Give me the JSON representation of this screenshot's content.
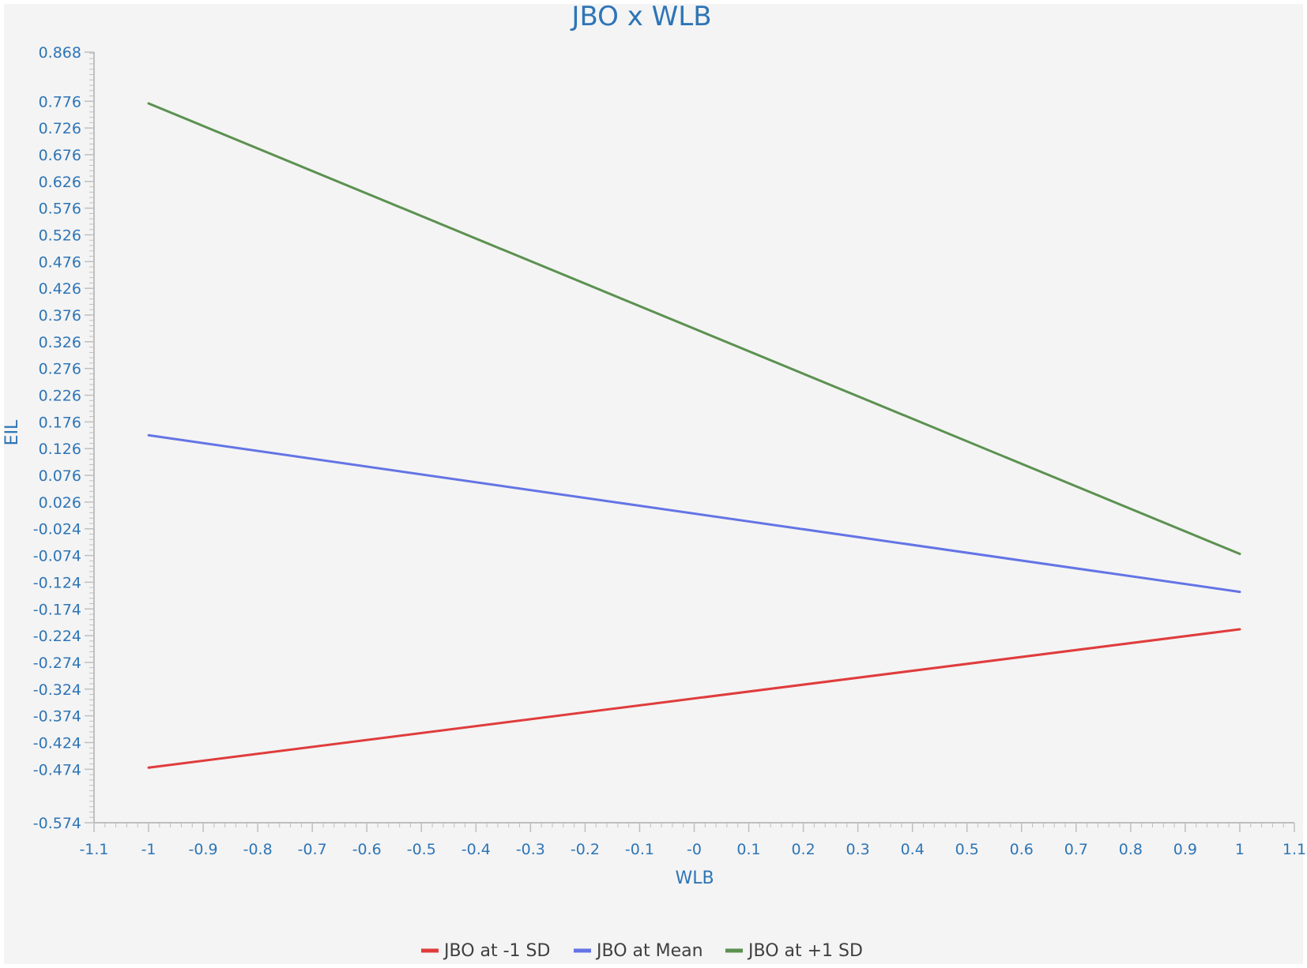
{
  "chart_data": {
    "type": "line",
    "title": "JBO x WLB",
    "xlabel": "WLB",
    "ylabel": "EIL",
    "xlim": [
      -1.1,
      1.1
    ],
    "ylim": [
      -0.574,
      0.868
    ],
    "x_ticks": [
      "-1.1",
      "-1",
      "-0.9",
      "-0.8",
      "-0.7",
      "-0.6",
      "-0.5",
      "-0.4",
      "-0.3",
      "-0.2",
      "-0.1",
      "-0",
      "0.1",
      "0.2",
      "0.3",
      "0.4",
      "0.5",
      "0.6",
      "0.7",
      "0.8",
      "0.9",
      "1",
      "1.1"
    ],
    "y_ticks": [
      "0.868",
      "0.776",
      "0.726",
      "0.676",
      "0.626",
      "0.576",
      "0.526",
      "0.476",
      "0.426",
      "0.376",
      "0.326",
      "0.276",
      "0.226",
      "0.176",
      "0.126",
      "0.076",
      "0.026",
      "-0.024",
      "-0.074",
      "-0.124",
      "-0.174",
      "-0.224",
      "-0.274",
      "-0.324",
      "-0.374",
      "-0.424",
      "-0.474",
      "-0.574"
    ],
    "grid": false,
    "legend_position": "bottom",
    "series": [
      {
        "name": "JBO at -1 SD",
        "color": "#E03C3C",
        "x": [
          -1,
          1
        ],
        "y": [
          -0.471,
          -0.212
        ]
      },
      {
        "name": "JBO at Mean",
        "color": "#6474E5",
        "x": [
          -1,
          1
        ],
        "y": [
          0.151,
          -0.142
        ]
      },
      {
        "name": "JBO at +1 SD",
        "color": "#5B9150",
        "x": [
          -1,
          1
        ],
        "y": [
          0.772,
          -0.071
        ]
      }
    ]
  },
  "colors": {
    "text": "#2E75B6",
    "plot_background": "#F4F4F4",
    "axis": "#BFBFBF"
  }
}
